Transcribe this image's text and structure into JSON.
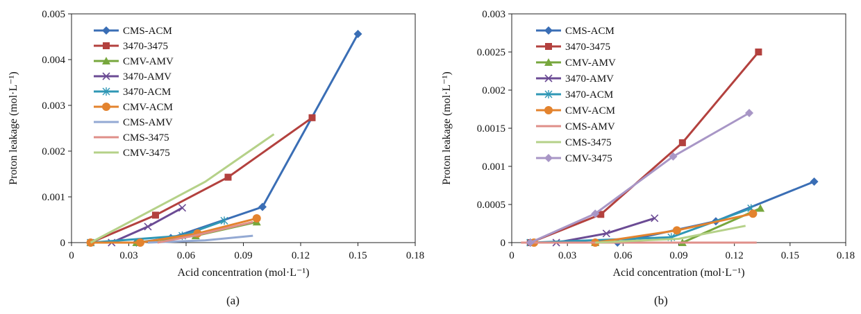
{
  "figure": {
    "panels": [
      {
        "caption": "(a)"
      },
      {
        "caption": "(b)"
      }
    ]
  },
  "chart_data": [
    {
      "type": "line",
      "title": "",
      "xlabel": "Acid concentration (mol·L⁻¹)",
      "ylabel": "Proton leakage (mol·L⁻¹)",
      "xlim": [
        0,
        0.18
      ],
      "ylim": [
        0,
        0.005
      ],
      "x_ticks": [
        "0",
        "0.03",
        "0.06",
        "0.09",
        "0.12",
        "0.15",
        "0.18"
      ],
      "y_ticks": [
        "0",
        "0.001",
        "0.002",
        "0.003",
        "0.004",
        "0.005"
      ],
      "grid": false,
      "legend": "top-left",
      "series": [
        {
          "name": "CMS-ACM",
          "color": "#3a6eb5",
          "marker": "diamond",
          "x": [
            0.01,
            0.034,
            0.052,
            0.1,
            0.15
          ],
          "y": [
            0,
            0,
            0.0001,
            0.00078,
            0.00456
          ]
        },
        {
          "name": "3470-3475",
          "color": "#b3413e",
          "marker": "square",
          "x": [
            0.01,
            0.044,
            0.082,
            0.126
          ],
          "y": [
            0,
            0.0006,
            0.00143,
            0.00273
          ]
        },
        {
          "name": "CMV-AMV",
          "color": "#77a73d",
          "marker": "triangle",
          "x": [
            0.01,
            0.034,
            0.065,
            0.097
          ],
          "y": [
            0,
            0,
            0.00015,
            0.00045
          ]
        },
        {
          "name": "3470-AMV",
          "color": "#6b4b94",
          "marker": "x",
          "x": [
            0.021,
            0.04,
            0.058
          ],
          "y": [
            0,
            0.00035,
            0.00076
          ]
        },
        {
          "name": "3470-ACM",
          "color": "#2f97b5",
          "marker": "star",
          "x": [
            0.01,
            0.058,
            0.08
          ],
          "y": [
            0,
            0.00015,
            0.00048
          ]
        },
        {
          "name": "CMV-ACM",
          "color": "#e3832e",
          "marker": "circle",
          "x": [
            0.01,
            0.036,
            0.066,
            0.097
          ],
          "y": [
            0,
            0,
            0.0002,
            0.00053
          ]
        },
        {
          "name": "CMS-AMV",
          "color": "#93a9d3",
          "marker": "line",
          "x": [
            0.04,
            0.07,
            0.095
          ],
          "y": [
            0,
            5e-05,
            0.00015
          ]
        },
        {
          "name": "CMS-3475",
          "color": "#df8f89",
          "marker": "line",
          "x": [
            0.045,
            0.064,
            0.095
          ],
          "y": [
            0,
            0.00015,
            0.00045
          ]
        },
        {
          "name": "CMV-3475",
          "color": "#b5d188",
          "marker": "line",
          "x": [
            0.01,
            0.07,
            0.106
          ],
          "y": [
            0,
            0.00133,
            0.00237
          ]
        }
      ]
    },
    {
      "type": "line",
      "title": "",
      "xlabel": "Acid concentration (mol·L⁻¹)",
      "ylabel": "Proton leakage (mol·L⁻¹)",
      "xlim": [
        0,
        0.18
      ],
      "ylim": [
        0,
        0.003
      ],
      "x_ticks": [
        "0",
        "0.03",
        "0.06",
        "0.09",
        "0.12",
        "0.15",
        "0.18"
      ],
      "y_ticks": [
        "0",
        "0.0005",
        "0.001",
        "0.0015",
        "0.002",
        "0.0025",
        "0.003"
      ],
      "grid": false,
      "legend": "top-left",
      "series": [
        {
          "name": "CMS-ACM",
          "color": "#3a6eb5",
          "marker": "diamond",
          "x": [
            0.01,
            0.057,
            0.11,
            0.163
          ],
          "y": [
            0,
            0,
            0.00028,
            0.0008
          ]
        },
        {
          "name": "3470-3475",
          "color": "#b3413e",
          "marker": "square",
          "x": [
            0.01,
            0.048,
            0.092,
            0.133
          ],
          "y": [
            0,
            0.00037,
            0.00131,
            0.0025
          ]
        },
        {
          "name": "CMV-AMV",
          "color": "#77a73d",
          "marker": "triangle",
          "x": [
            0.045,
            0.092,
            0.134
          ],
          "y": [
            0,
            0,
            0.00045
          ]
        },
        {
          "name": "3470-AMV",
          "color": "#6b4b94",
          "marker": "x",
          "x": [
            0.024,
            0.051,
            0.077
          ],
          "y": [
            0,
            0.00012,
            0.00032
          ]
        },
        {
          "name": "3470-ACM",
          "color": "#2f97b5",
          "marker": "star",
          "x": [
            0.01,
            0.086,
            0.129
          ],
          "y": [
            0,
            7e-05,
            0.00045
          ]
        },
        {
          "name": "CMV-ACM",
          "color": "#e3832e",
          "marker": "circle",
          "x": [
            0.012,
            0.045,
            0.089,
            0.13
          ],
          "y": [
            0,
            0,
            0.00016,
            0.00038
          ]
        },
        {
          "name": "CMS-AMV",
          "color": "#df8f89",
          "marker": "line",
          "x": [
            0.005,
            0.132
          ],
          "y": [
            0,
            0
          ]
        },
        {
          "name": "CMS-3475",
          "color": "#b5d188",
          "marker": "line",
          "x": [
            0.045,
            0.09,
            0.126
          ],
          "y": [
            0,
            5e-05,
            0.00022
          ]
        },
        {
          "name": "CMV-3475",
          "color": "#a896c6",
          "marker": "diamond",
          "x": [
            0.01,
            0.045,
            0.087,
            0.128
          ],
          "y": [
            0,
            0.00038,
            0.00113,
            0.0017
          ]
        }
      ]
    }
  ]
}
